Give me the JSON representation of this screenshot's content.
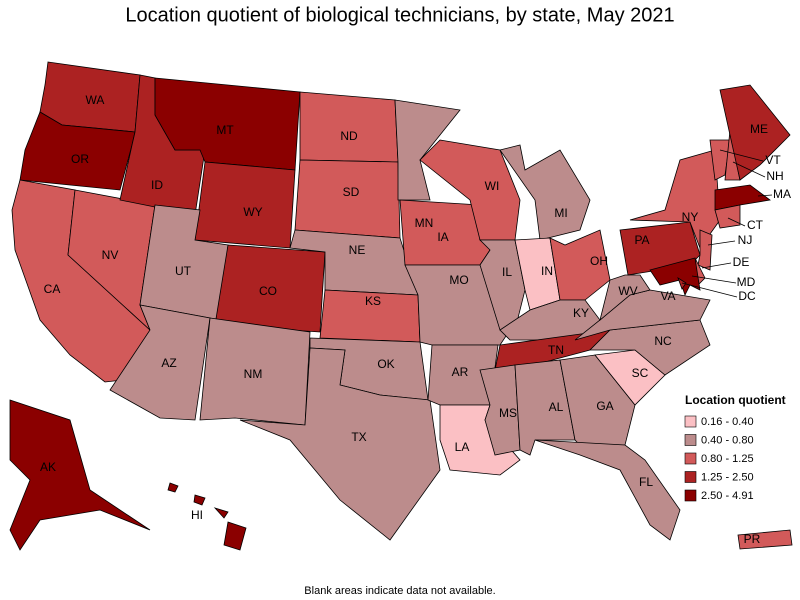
{
  "title": "Location quotient of biological technicians, by state, May 2021",
  "legend": {
    "title": "Location quotient",
    "items": [
      {
        "label": "0.16 - 0.40",
        "color": "#fbc0c4"
      },
      {
        "label": "0.40 - 0.80",
        "color": "#bc8c8c"
      },
      {
        "label": "0.80 - 1.25",
        "color": "#d25a5a"
      },
      {
        "label": "1.25 - 2.50",
        "color": "#ac2222"
      },
      {
        "label": "2.50 - 4.91",
        "color": "#8b0000"
      }
    ]
  },
  "states": [
    {
      "label": "WA",
      "class": 3
    },
    {
      "label": "OR",
      "class": 4
    },
    {
      "label": "CA",
      "class": 2
    },
    {
      "label": "NV",
      "class": 2
    },
    {
      "label": "ID",
      "class": 3
    },
    {
      "label": "MT",
      "class": 4
    },
    {
      "label": "WY",
      "class": 3
    },
    {
      "label": "UT",
      "class": 1
    },
    {
      "label": "CO",
      "class": 3
    },
    {
      "label": "AZ",
      "class": 1
    },
    {
      "label": "NM",
      "class": 1
    },
    {
      "label": "ND",
      "class": 2
    },
    {
      "label": "SD",
      "class": 2
    },
    {
      "label": "NE",
      "class": 1
    },
    {
      "label": "KS",
      "class": 2
    },
    {
      "label": "OK",
      "class": 1
    },
    {
      "label": "TX",
      "class": 1
    },
    {
      "label": "MN",
      "class": 1
    },
    {
      "label": "IA",
      "class": 2
    },
    {
      "label": "MO",
      "class": 1
    },
    {
      "label": "AR",
      "class": 1
    },
    {
      "label": "LA",
      "class": 0
    },
    {
      "label": "WI",
      "class": 2
    },
    {
      "label": "IL",
      "class": 1
    },
    {
      "label": "MI",
      "class": 1
    },
    {
      "label": "IN",
      "class": 0
    },
    {
      "label": "OH",
      "class": 2
    },
    {
      "label": "KY",
      "class": 1
    },
    {
      "label": "TN",
      "class": 3
    },
    {
      "label": "MS",
      "class": 1
    },
    {
      "label": "AL",
      "class": 1
    },
    {
      "label": "GA",
      "class": 1
    },
    {
      "label": "FL",
      "class": 1
    },
    {
      "label": "SC",
      "class": 0
    },
    {
      "label": "NC",
      "class": 1
    },
    {
      "label": "VA",
      "class": 1
    },
    {
      "label": "WV",
      "class": 1
    },
    {
      "label": "PA",
      "class": 3
    },
    {
      "label": "NY",
      "class": 2
    },
    {
      "label": "VT",
      "class": 2
    },
    {
      "label": "NH",
      "class": 2
    },
    {
      "label": "ME",
      "class": 3
    },
    {
      "label": "MA",
      "class": 4
    },
    {
      "label": "CT",
      "class": 2
    },
    {
      "label": "NJ",
      "class": 2
    },
    {
      "label": "DE",
      "class": 2
    },
    {
      "label": "MD",
      "class": 4
    },
    {
      "label": "DC",
      "class": 3
    },
    {
      "label": "AK",
      "class": 4
    },
    {
      "label": "HI",
      "class": 4
    },
    {
      "label": "PR",
      "class": 2
    }
  ],
  "footnote": "Blank areas indicate data not available."
}
